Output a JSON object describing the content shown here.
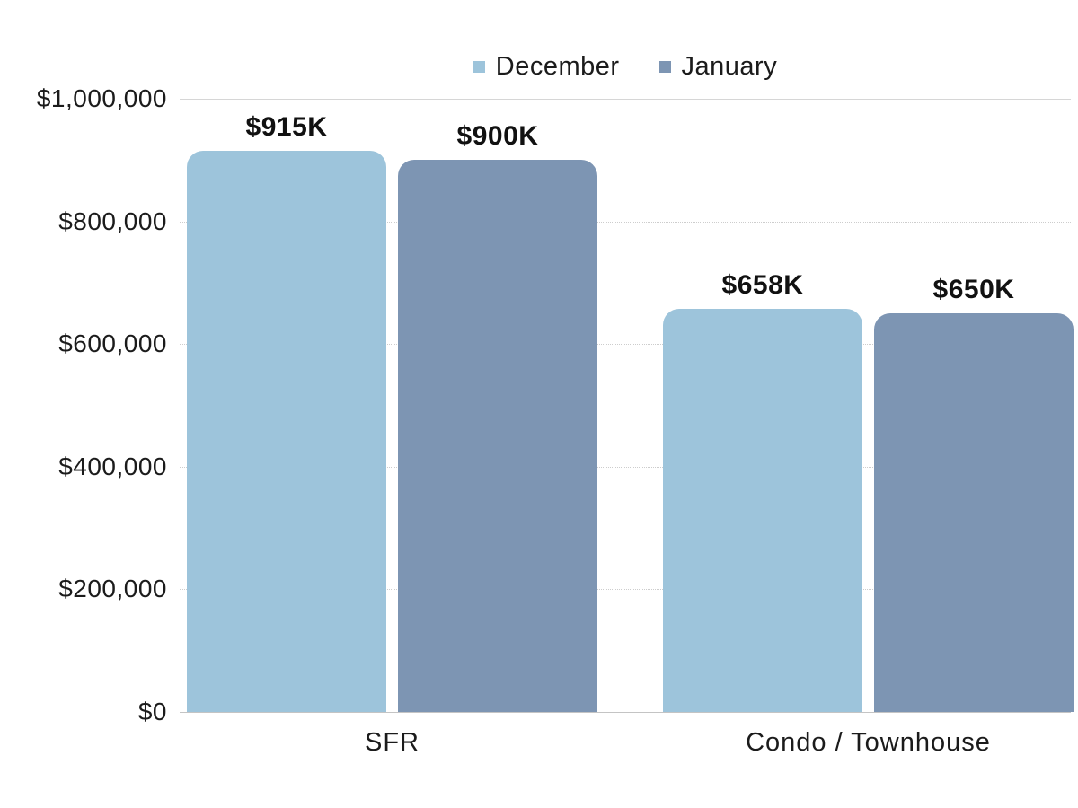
{
  "colors": {
    "december": "#9dc4db",
    "january": "#7d95b3",
    "grid_solid": "#d6d6d6",
    "grid_dotted": "#cdcdcd",
    "baseline": "#c4c4c4",
    "text": "#1b1b1b"
  },
  "legend": [
    {
      "label": "December",
      "color": "#9dc4db"
    },
    {
      "label": "January",
      "color": "#7d95b3"
    }
  ],
  "chart_data": {
    "type": "bar",
    "title": "",
    "xlabel": "",
    "ylabel": "",
    "categories": [
      "SFR",
      "Condo / Townhouse"
    ],
    "series": [
      {
        "name": "December",
        "color": "#9dc4db",
        "values": [
          915000,
          658000
        ],
        "value_labels": [
          "$915K",
          "$658K"
        ]
      },
      {
        "name": "January",
        "color": "#7d95b3",
        "values": [
          900000,
          650000
        ],
        "value_labels": [
          "$900K",
          "$650K"
        ]
      }
    ],
    "ylim": [
      0,
      1000000
    ],
    "yticks": [
      {
        "value": 0,
        "label": "$0"
      },
      {
        "value": 200000,
        "label": "$200,000"
      },
      {
        "value": 400000,
        "label": "$400,000"
      },
      {
        "value": 600000,
        "label": "$600,000"
      },
      {
        "value": 800000,
        "label": "$800,000"
      },
      {
        "value": 1000000,
        "label": "$1,000,000"
      }
    ],
    "grid": "horizontal",
    "legend_position": "top-center"
  }
}
